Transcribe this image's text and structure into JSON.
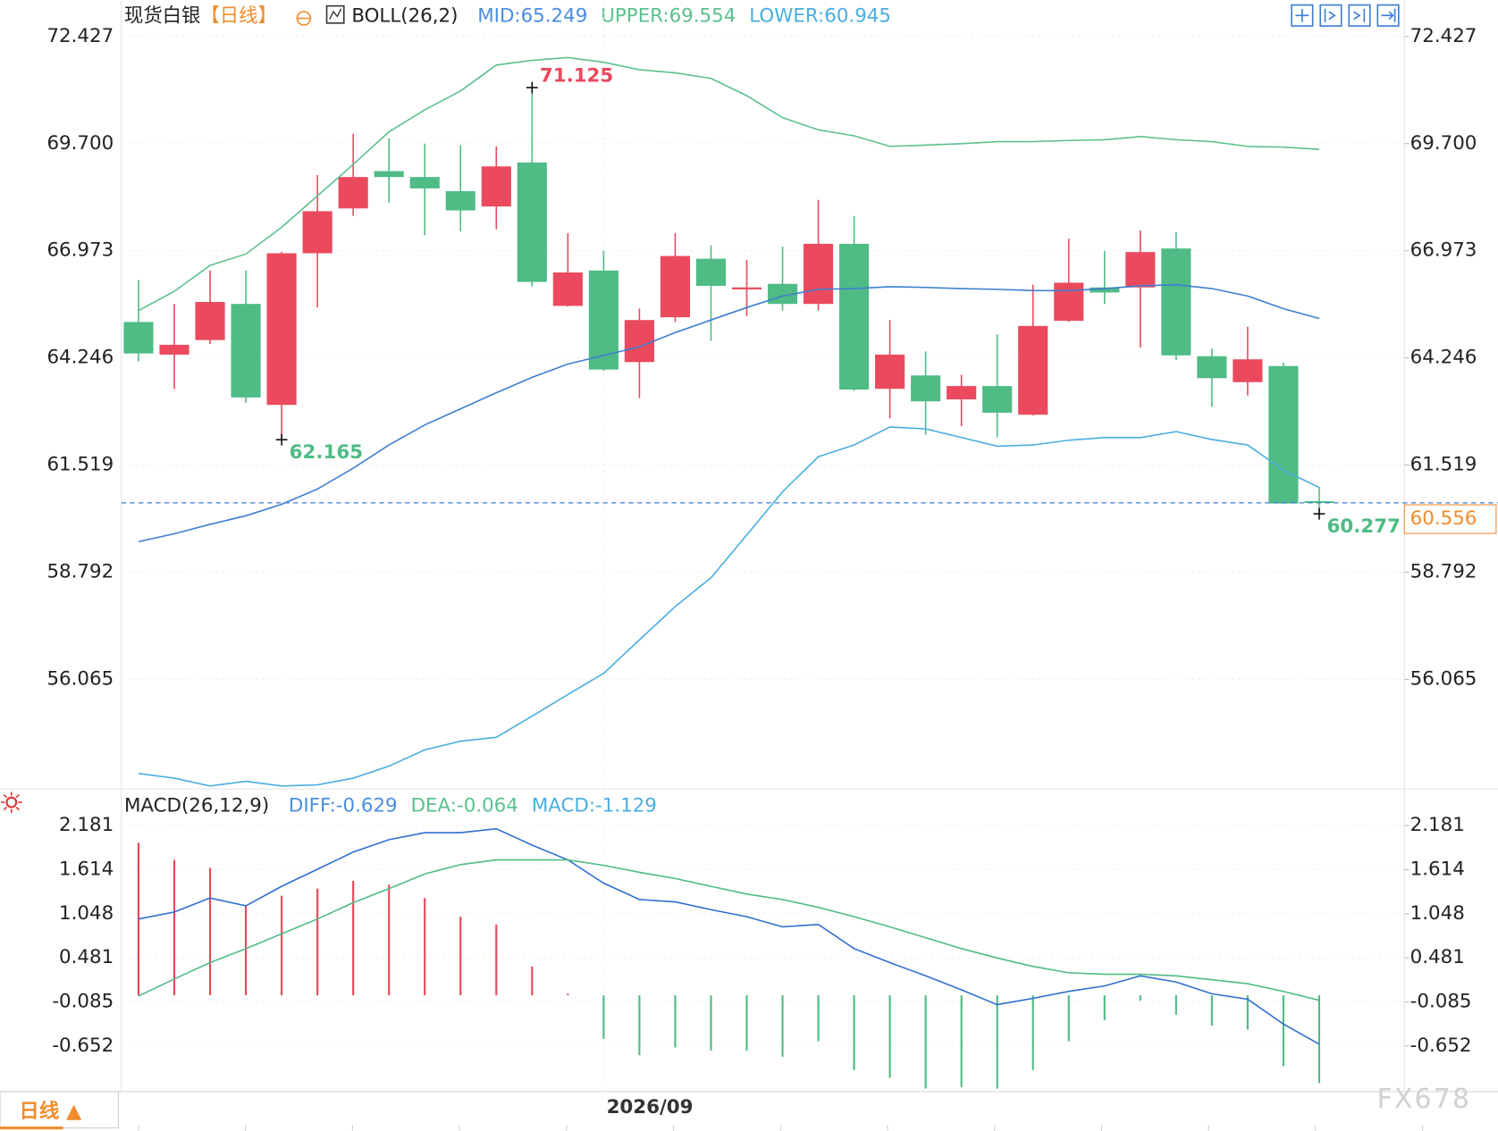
{
  "chart_data": [
    {
      "type": "candlestick",
      "title": "现货白银",
      "period": "【日线】",
      "indicator": "BOLL(26,2)",
      "categories": [
        null,
        null,
        null,
        null,
        null,
        null,
        null,
        null,
        null,
        null,
        null,
        null,
        null,
        "2026/09",
        null,
        null,
        null,
        null,
        null,
        null,
        null,
        null,
        null,
        null,
        null,
        null,
        null,
        null,
        null,
        null,
        null,
        null,
        null,
        null
      ],
      "open": [
        65.16,
        64.33,
        64.7,
        65.62,
        63.05,
        66.91,
        68.05,
        69.0,
        68.85,
        68.49,
        68.1,
        69.22,
        65.57,
        66.47,
        64.14,
        65.28,
        66.77,
        65.99,
        66.13,
        65.62,
        67.15,
        63.46,
        63.8,
        63.19,
        63.53,
        62.8,
        65.19,
        66.04,
        66.04,
        67.03,
        64.29,
        63.63,
        64.04,
        60.6
      ],
      "high": [
        66.23,
        65.62,
        66.47,
        66.47,
        66.94,
        68.9,
        69.95,
        69.83,
        69.7,
        69.66,
        69.63,
        71.125,
        67.42,
        66.97,
        65.5,
        67.42,
        67.11,
        66.74,
        67.08,
        68.27,
        67.86,
        65.21,
        64.41,
        63.82,
        64.85,
        66.11,
        67.28,
        66.97,
        67.49,
        67.45,
        64.48,
        65.04,
        64.12,
        60.96
      ],
      "low": [
        64.16,
        63.46,
        64.6,
        63.1,
        62.165,
        65.53,
        67.86,
        68.2,
        67.37,
        67.47,
        67.52,
        66.06,
        65.55,
        63.92,
        63.22,
        65.16,
        64.68,
        65.31,
        65.45,
        65.45,
        63.41,
        62.71,
        62.29,
        62.51,
        62.22,
        62.78,
        65.16,
        65.62,
        64.51,
        64.19,
        63.0,
        63.29,
        60.54,
        60.277
      ],
      "close": [
        64.36,
        64.58,
        65.67,
        63.24,
        66.91,
        67.98,
        68.85,
        68.85,
        68.56,
        68.0,
        69.12,
        66.18,
        66.42,
        63.95,
        65.21,
        66.84,
        66.08,
        66.04,
        65.62,
        67.15,
        63.44,
        64.33,
        63.14,
        63.53,
        62.85,
        65.06,
        66.16,
        65.91,
        66.94,
        64.31,
        63.73,
        64.21,
        60.54,
        60.556
      ],
      "up_color": "#eb4a5e",
      "down_color": "#4fbb85",
      "series": [
        {
          "name": "MID:65.249",
          "color": "#3d7fd0",
          "text_color": "#4a8fe0",
          "values": [
            59.57,
            59.77,
            60.01,
            60.23,
            60.52,
            60.91,
            61.44,
            62.03,
            62.54,
            62.95,
            63.36,
            63.75,
            64.09,
            64.31,
            64.53,
            64.89,
            65.21,
            65.53,
            65.82,
            65.99,
            66.01,
            66.06,
            66.04,
            66.01,
            65.99,
            65.96,
            65.96,
            66.01,
            66.08,
            66.11,
            66.01,
            65.82,
            65.5,
            65.249
          ]
        },
        {
          "name": "UPPER:69.554",
          "color": "#5cc08d",
          "text_color": "#5cc08d",
          "values": [
            65.45,
            65.94,
            66.6,
            66.89,
            67.57,
            68.37,
            69.17,
            70.0,
            70.56,
            71.04,
            71.7,
            71.82,
            71.89,
            71.77,
            71.58,
            71.5,
            71.36,
            70.92,
            70.36,
            70.05,
            69.9,
            69.63,
            69.66,
            69.7,
            69.75,
            69.75,
            69.78,
            69.8,
            69.88,
            69.8,
            69.75,
            69.63,
            69.61,
            69.554
          ]
        },
        {
          "name": "LOWER:60.945",
          "color": "#4aaee0",
          "text_color": "#4aaee0",
          "values": [
            53.67,
            53.55,
            53.35,
            53.47,
            53.35,
            53.38,
            53.55,
            53.86,
            54.27,
            54.49,
            54.59,
            55.13,
            55.68,
            56.22,
            57.07,
            57.92,
            58.65,
            59.74,
            60.84,
            61.73,
            62.03,
            62.49,
            62.44,
            62.22,
            62.0,
            62.03,
            62.15,
            62.22,
            62.22,
            62.37,
            62.17,
            62.03,
            61.39,
            60.945
          ]
        }
      ],
      "annotations": [
        {
          "index": 11,
          "value": 71.125,
          "color": "#e84a5f"
        },
        {
          "index": 4,
          "value": 62.165,
          "color": "#4fbb85"
        },
        {
          "index": 33,
          "value": 60.277,
          "color": "#4fbb85"
        }
      ],
      "last_price": 60.556,
      "last_price_color": "#f08c2c",
      "ylim": [
        53.3,
        73.35
      ],
      "yticks": [
        72.427,
        {
          "value": 69.7,
          "label": "69.700"
        },
        66.973,
        64.246,
        61.519,
        58.792,
        56.065
      ],
      "grid": true
    },
    {
      "type": "macd",
      "title": "MACD(26,12,9)",
      "series": [
        {
          "name": "DIFF:-0.629",
          "kind": "line",
          "color": "#2f6fd0",
          "text_color": "#4a8fe0",
          "values": [
            0.98,
            1.07,
            1.25,
            1.15,
            1.4,
            1.62,
            1.84,
            2.0,
            2.09,
            2.09,
            2.14,
            1.93,
            1.74,
            1.44,
            1.23,
            1.2,
            1.1,
            1.01,
            0.88,
            0.91,
            0.6,
            0.42,
            0.25,
            0.07,
            -0.12,
            -0.04,
            0.05,
            0.12,
            0.25,
            0.17,
            0.02,
            -0.05,
            -0.37,
            -0.629
          ]
        },
        {
          "name": "DEA:-0.064",
          "kind": "line",
          "color": "#4fbb85",
          "text_color": "#5cc08d",
          "values": [
            -0.01,
            0.21,
            0.42,
            0.6,
            0.79,
            0.98,
            1.19,
            1.37,
            1.56,
            1.68,
            1.74,
            1.74,
            1.74,
            1.67,
            1.58,
            1.5,
            1.4,
            1.3,
            1.23,
            1.13,
            1.01,
            0.88,
            0.74,
            0.6,
            0.48,
            0.37,
            0.29,
            0.27,
            0.27,
            0.25,
            0.2,
            0.15,
            0.05,
            -0.064
          ]
        },
        {
          "name": "MACD:-1.129",
          "kind": "bar",
          "color": "#4aaee0",
          "text_color": "#4aaee0",
          "values": [
            1.96,
            1.74,
            1.64,
            1.15,
            1.28,
            1.37,
            1.47,
            1.42,
            1.25,
            1.01,
            0.91,
            0.37,
            0.02,
            -0.56,
            -0.77,
            -0.67,
            -0.71,
            -0.71,
            -0.79,
            -0.59,
            -0.96,
            -1.06,
            -1.2,
            -1.18,
            -1.2,
            -0.96,
            -0.59,
            -0.32,
            -0.07,
            -0.25,
            -0.39,
            -0.44,
            -0.91,
            -1.129
          ]
        }
      ],
      "up_color": "#e8475a",
      "down_color": "#4fbb85",
      "ylim": [
        -1.226,
        2.627
      ],
      "yticks": [
        2.181,
        1.614,
        1.048,
        0.481,
        -0.085,
        -0.652
      ],
      "grid": true
    }
  ],
  "tab": "日线 ▲",
  "watermark": "FX678"
}
